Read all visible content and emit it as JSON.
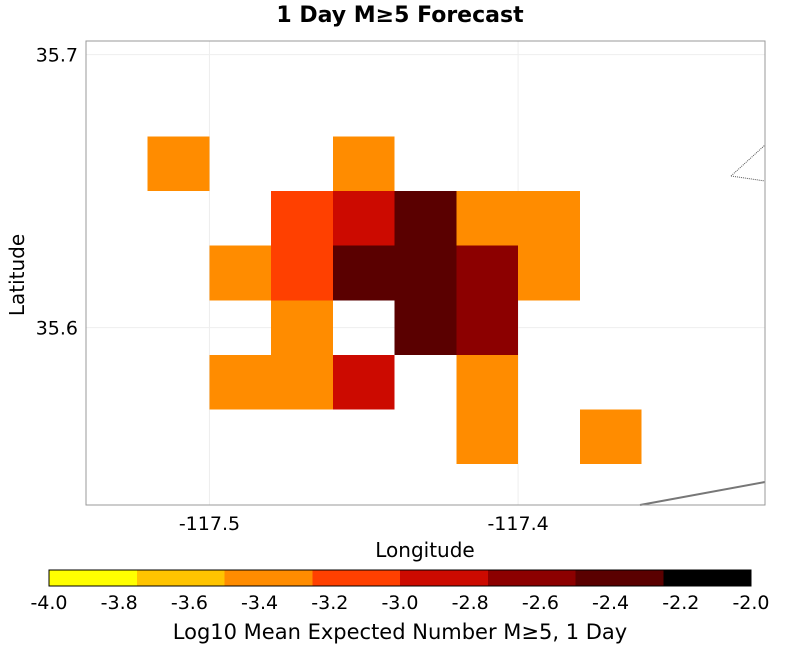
{
  "chart_data": {
    "type": "heatmap",
    "title": "1 Day M≥5 Forecast",
    "xlabel": "Longitude",
    "ylabel": "Latitude",
    "xlim": [
      -117.54,
      -117.32
    ],
    "ylim": [
      35.535,
      35.705
    ],
    "xticks": [
      -117.5,
      -117.4
    ],
    "xtick_labels": [
      "-117.5",
      "-117.4"
    ],
    "yticks": [
      35.6,
      35.7
    ],
    "ytick_labels": [
      "35.6",
      "35.7"
    ],
    "grid": true,
    "cell_size": 0.02,
    "cells": [
      {
        "lon": -117.51,
        "lat": 35.66,
        "value": -3.4
      },
      {
        "lon": -117.45,
        "lat": 35.66,
        "value": -3.4
      },
      {
        "lon": -117.47,
        "lat": 35.64,
        "value": -3.2
      },
      {
        "lon": -117.45,
        "lat": 35.64,
        "value": -2.9
      },
      {
        "lon": -117.43,
        "lat": 35.64,
        "value": -2.5
      },
      {
        "lon": -117.41,
        "lat": 35.64,
        "value": -3.4
      },
      {
        "lon": -117.39,
        "lat": 35.64,
        "value": -3.4
      },
      {
        "lon": -117.49,
        "lat": 35.62,
        "value": -3.4
      },
      {
        "lon": -117.47,
        "lat": 35.62,
        "value": -3.2
      },
      {
        "lon": -117.45,
        "lat": 35.62,
        "value": -2.3
      },
      {
        "lon": -117.43,
        "lat": 35.62,
        "value": -2.35
      },
      {
        "lon": -117.41,
        "lat": 35.62,
        "value": -2.6
      },
      {
        "lon": -117.39,
        "lat": 35.62,
        "value": -3.4
      },
      {
        "lon": -117.47,
        "lat": 35.6,
        "value": -3.4
      },
      {
        "lon": -117.43,
        "lat": 35.6,
        "value": -2.35
      },
      {
        "lon": -117.41,
        "lat": 35.6,
        "value": -2.6
      },
      {
        "lon": -117.49,
        "lat": 35.58,
        "value": -3.4
      },
      {
        "lon": -117.47,
        "lat": 35.58,
        "value": -3.4
      },
      {
        "lon": -117.45,
        "lat": 35.58,
        "value": -2.9
      },
      {
        "lon": -117.41,
        "lat": 35.58,
        "value": -3.4
      },
      {
        "lon": -117.41,
        "lat": 35.56,
        "value": -3.4
      },
      {
        "lon": -117.37,
        "lat": 35.56,
        "value": -3.4
      }
    ],
    "colorbar": {
      "min": -4.0,
      "max": -2.0,
      "tick_labels": [
        "-4.0",
        "-3.8",
        "-3.6",
        "-3.4",
        "-3.2",
        "-3.0",
        "-2.8",
        "-2.6",
        "-2.4",
        "-2.2",
        "-2.0"
      ],
      "bands": [
        "#ffff00",
        "#ffc400",
        "#ff8c00",
        "#ff4000",
        "#cc0a00",
        "#8c0000",
        "#5a0000",
        "#000000"
      ],
      "label": "Log10 Mean Expected Number M≥5, 1 Day"
    }
  }
}
